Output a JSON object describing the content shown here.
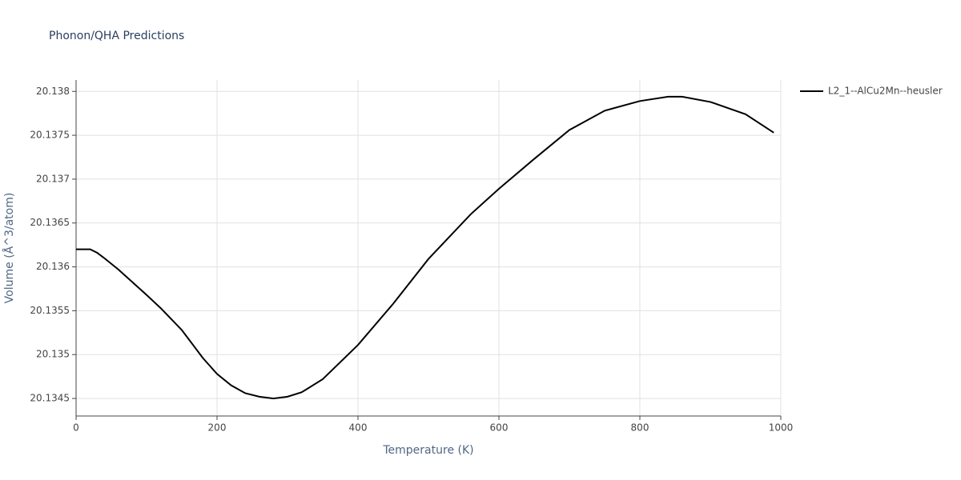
{
  "chart_data": {
    "type": "line",
    "title": "Phonon/QHA Predictions",
    "x_label": "Temperature (K)",
    "y_label": "Volume (Å^3/atom)",
    "x": [
      0,
      20,
      30,
      40,
      60,
      100,
      120,
      150,
      180,
      200,
      220,
      240,
      260,
      280,
      300,
      320,
      350,
      400,
      450,
      500,
      560,
      600,
      650,
      700,
      750,
      800,
      840,
      860,
      900,
      950,
      990
    ],
    "series": [
      {
        "name": "L2_1--AlCu2Mn--heusler",
        "color": "#000000",
        "values": [
          20.1362,
          20.1362,
          20.13616,
          20.1361,
          20.13597,
          20.13568,
          20.13553,
          20.13528,
          20.13496,
          20.13478,
          20.13465,
          20.13456,
          20.13452,
          20.1345,
          20.13452,
          20.13457,
          20.13472,
          20.13511,
          20.13558,
          20.13609,
          20.1366,
          20.13689,
          20.13723,
          20.13756,
          20.13778,
          20.13789,
          20.13794,
          20.13794,
          20.13788,
          20.13774,
          20.13753
        ]
      }
    ],
    "xlim": [
      0,
      1000
    ],
    "xticks": [
      0,
      200,
      400,
      600,
      800,
      1000
    ],
    "ylim": [
      20.1343,
      20.13813
    ],
    "yticks": [
      20.1345,
      20.135,
      20.1355,
      20.136,
      20.1365,
      20.137,
      20.1375,
      20.138
    ],
    "grid": true,
    "legend": "right"
  }
}
